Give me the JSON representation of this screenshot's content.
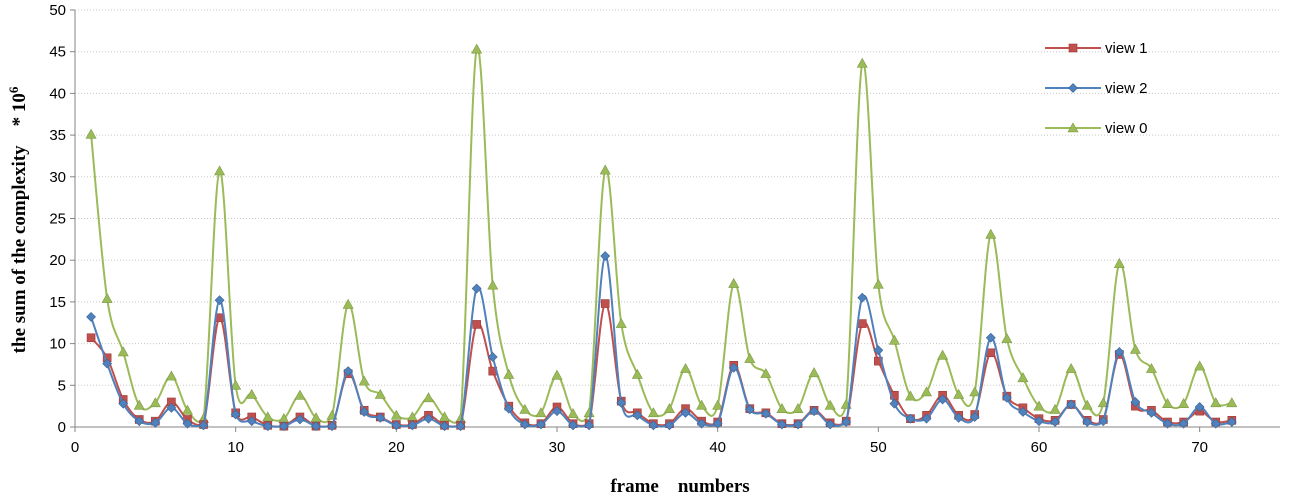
{
  "chart_data": {
    "type": "line",
    "xlabel": "frame    numbers",
    "ylabel": "the sum of the complexity    * 10",
    "ylabel_superscript": "6",
    "xlim": [
      0,
      75
    ],
    "ylim": [
      0,
      50
    ],
    "x_ticks": [
      0,
      10,
      20,
      30,
      40,
      50,
      60,
      70
    ],
    "y_ticks": [
      0,
      5,
      10,
      15,
      20,
      25,
      30,
      35,
      40,
      45,
      50
    ],
    "grid": "horizontal dotted",
    "legend_position": "top-right",
    "x": [
      1,
      2,
      3,
      4,
      5,
      6,
      7,
      8,
      9,
      10,
      11,
      12,
      13,
      14,
      15,
      16,
      17,
      18,
      19,
      20,
      21,
      22,
      23,
      24,
      25,
      26,
      27,
      28,
      29,
      30,
      31,
      32,
      33,
      34,
      35,
      36,
      37,
      38,
      39,
      40,
      41,
      42,
      43,
      44,
      45,
      46,
      47,
      48,
      49,
      50,
      51,
      52,
      53,
      54,
      55,
      56,
      57,
      58,
      59,
      60,
      61,
      62,
      63,
      64,
      65,
      66,
      67,
      68,
      69,
      70,
      71,
      72
    ],
    "series": [
      {
        "name": "view 1",
        "color": "#c0504d",
        "marker": "square",
        "values": [
          10.7,
          8.3,
          3.3,
          0.9,
          0.7,
          3.0,
          0.9,
          0.3,
          13.1,
          1.7,
          1.2,
          0.2,
          0.1,
          1.2,
          0.1,
          0.2,
          6.4,
          2.0,
          1.2,
          0.3,
          0.3,
          1.4,
          0.2,
          0.2,
          12.3,
          6.7,
          2.5,
          0.5,
          0.4,
          2.4,
          0.4,
          0.4,
          14.8,
          3.1,
          1.7,
          0.4,
          0.4,
          2.2,
          0.7,
          0.6,
          7.4,
          2.2,
          1.7,
          0.4,
          0.4,
          2.0,
          0.5,
          0.7,
          12.4,
          7.9,
          3.8,
          1.0,
          1.4,
          3.8,
          1.4,
          1.5,
          8.9,
          3.7,
          2.3,
          1.0,
          0.8,
          2.7,
          0.8,
          0.9,
          8.7,
          2.5,
          2.0,
          0.6,
          0.6,
          1.9,
          0.6,
          0.8
        ]
      },
      {
        "name": "view 2",
        "color": "#4f81bd",
        "marker": "diamond",
        "values": [
          13.2,
          7.6,
          2.8,
          0.7,
          0.5,
          2.3,
          0.4,
          0.2,
          15.2,
          1.5,
          0.7,
          0.1,
          0.1,
          0.9,
          0.1,
          0.1,
          6.7,
          1.8,
          1.1,
          0.2,
          0.2,
          1.0,
          0.1,
          0.1,
          16.6,
          8.4,
          2.2,
          0.3,
          0.3,
          1.9,
          0.2,
          0.2,
          20.5,
          2.9,
          1.4,
          0.2,
          0.2,
          1.7,
          0.4,
          0.4,
          7.1,
          2.1,
          1.6,
          0.3,
          0.3,
          1.9,
          0.3,
          0.6,
          15.5,
          9.2,
          2.8,
          1.0,
          1.0,
          3.3,
          1.1,
          1.2,
          10.7,
          3.5,
          1.8,
          0.7,
          0.6,
          2.7,
          0.6,
          0.7,
          9.0,
          3.0,
          1.7,
          0.4,
          0.4,
          2.4,
          0.4,
          0.6
        ]
      },
      {
        "name": "view 0",
        "color": "#9bbb59",
        "marker": "triangle",
        "values": [
          35.1,
          15.4,
          9.0,
          2.6,
          2.9,
          6.1,
          2.0,
          1.0,
          30.7,
          5.0,
          3.9,
          1.2,
          1.0,
          3.8,
          1.1,
          1.4,
          14.7,
          5.5,
          3.9,
          1.4,
          1.2,
          3.5,
          1.2,
          1.0,
          45.3,
          17.0,
          6.3,
          2.1,
          1.7,
          6.2,
          1.6,
          1.7,
          30.8,
          12.4,
          6.3,
          1.7,
          2.2,
          7.0,
          2.6,
          2.6,
          17.2,
          8.2,
          6.4,
          2.2,
          2.2,
          6.5,
          2.6,
          2.7,
          43.6,
          17.1,
          10.4,
          3.7,
          4.2,
          8.6,
          3.9,
          4.2,
          23.1,
          10.6,
          5.9,
          2.5,
          2.1,
          7.0,
          2.6,
          2.9,
          19.6,
          9.3,
          7.0,
          2.8,
          2.8,
          7.3,
          2.9,
          2.9
        ]
      }
    ]
  }
}
